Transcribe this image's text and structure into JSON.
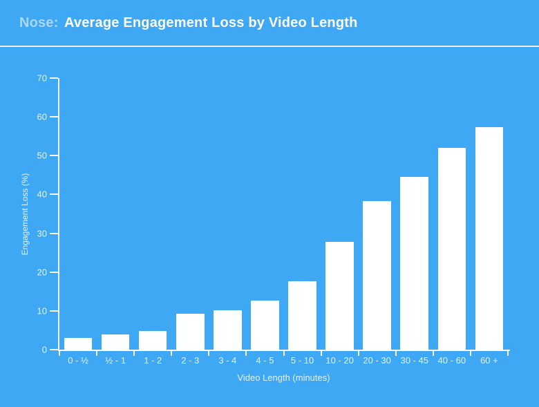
{
  "header": {
    "title_prefix": "Nose:",
    "title_main": "Average Engagement Loss by Video Length"
  },
  "chart_data": {
    "type": "bar",
    "title": "Nose: Average Engagement Loss by Video Length",
    "categories": [
      "0 - ½",
      "½ - 1",
      "1 - 2",
      "2 - 3",
      "3 - 4",
      "4 - 5",
      "5 - 10",
      "10 - 20",
      "20 - 30",
      "30 - 45",
      "40 - 60",
      "60 +"
    ],
    "values": [
      3.0,
      3.9,
      4.9,
      9.2,
      10.1,
      12.6,
      17.6,
      27.8,
      38.3,
      44.6,
      52.1,
      57.3
    ],
    "xlabel": "Video Length (minutes)",
    "ylabel": "Engagement Loss (%)",
    "ylim": [
      0,
      70
    ],
    "yticks": [
      0,
      10,
      20,
      30,
      40,
      50,
      60,
      70
    ],
    "grid": false,
    "legend": "none"
  },
  "colors": {
    "background": "#3FA8F4",
    "bar": "#FFFFFF",
    "axis": "#FDFEFF",
    "tick_label": "#E4F1FC",
    "title_main": "#FFFFFF",
    "title_prefix": "#A9D7F8",
    "separator": "#ECF2F8"
  }
}
